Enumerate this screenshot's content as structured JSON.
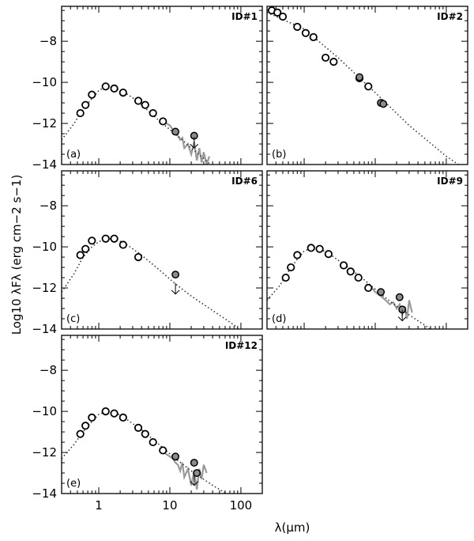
{
  "figure": {
    "ylabel": "Log10 λFλ (erg cm−2 s−1)",
    "xlabel": "λ(μm)"
  },
  "chart_data": [
    {
      "type": "scatter",
      "id_label": "ID#1",
      "panel_label": "(a)",
      "xscale": "log",
      "xlim": [
        0.3,
        200
      ],
      "ylim": [
        -14,
        -6.3
      ],
      "yticks": [
        -8,
        -10,
        -12,
        -14
      ],
      "xticks": [],
      "xtick_labels": [],
      "legend": "none",
      "series": [
        {
          "kind": "open_circles",
          "x": [
            0.55,
            0.65,
            0.8,
            1.25,
            1.65,
            2.2,
            3.6,
            4.5,
            5.8,
            8.0
          ],
          "y": [
            -11.5,
            -11.1,
            -10.6,
            -10.2,
            -10.3,
            -10.5,
            -10.9,
            -11.1,
            -11.5,
            -11.9
          ]
        },
        {
          "kind": "filled_circles",
          "x": [
            12,
            22
          ],
          "y": [
            -12.4,
            -12.6
          ]
        },
        {
          "kind": "upper_limits",
          "x": [
            22
          ],
          "y": [
            -13.2
          ]
        },
        {
          "kind": "model_dotted",
          "x": [
            0.3,
            0.45,
            0.6,
            0.8,
            1.0,
            1.25,
            1.6,
            2.2,
            3.0,
            4.5,
            7.0,
            10,
            15,
            20,
            30,
            40
          ],
          "y": [
            -12.8,
            -12.0,
            -11.3,
            -10.8,
            -10.4,
            -10.2,
            -10.25,
            -10.45,
            -10.75,
            -11.25,
            -11.85,
            -12.3,
            -12.8,
            -13.2,
            -13.7,
            -14.1
          ]
        },
        {
          "kind": "spectrum_gray",
          "x": [
            7.5,
            9,
            10,
            11,
            12,
            13,
            14,
            15,
            16,
            18,
            20,
            22,
            24,
            26,
            28,
            30,
            33,
            36
          ],
          "y": [
            -11.8,
            -12.0,
            -12.1,
            -12.3,
            -12.5,
            -12.6,
            -12.8,
            -12.7,
            -13.2,
            -13.0,
            -13.5,
            -12.9,
            -13.8,
            -13.2,
            -13.9,
            -13.4,
            -14.0,
            -13.6
          ]
        }
      ]
    },
    {
      "type": "scatter",
      "id_label": "ID#2",
      "panel_label": "(b)",
      "xscale": "log",
      "xlim": [
        0.3,
        200
      ],
      "ylim": [
        -14,
        -6.3
      ],
      "yticks": [],
      "xticks": [],
      "xtick_labels": [],
      "legend": "none",
      "series": [
        {
          "kind": "open_circles",
          "x": [
            0.35,
            0.42,
            0.5,
            0.8,
            1.05,
            1.35,
            2.0,
            2.6,
            6.0,
            8.0
          ],
          "y": [
            -6.5,
            -6.6,
            -6.8,
            -7.3,
            -7.6,
            -7.8,
            -8.8,
            -9.0,
            -9.8,
            -10.2
          ]
        },
        {
          "kind": "filled_circles",
          "x": [
            6.0,
            12,
            13
          ],
          "y": [
            -9.75,
            -11.0,
            -11.05
          ]
        },
        {
          "kind": "model_dotted",
          "x": [
            0.3,
            1.0,
            3.0,
            10,
            30,
            100,
            200
          ],
          "y": [
            -6.6,
            -7.4,
            -8.8,
            -10.5,
            -12.1,
            -13.6,
            -14.3
          ]
        }
      ]
    },
    {
      "type": "scatter",
      "id_label": "ID#6",
      "panel_label": "(c)",
      "xscale": "log",
      "xlim": [
        0.3,
        200
      ],
      "ylim": [
        -14,
        -6.3
      ],
      "yticks": [
        -8,
        -10,
        -12,
        -14
      ],
      "xticks": [],
      "xtick_labels": [],
      "legend": "none",
      "series": [
        {
          "kind": "open_circles",
          "x": [
            0.55,
            0.65,
            0.8,
            1.25,
            1.65,
            2.2,
            3.6
          ],
          "y": [
            -10.4,
            -10.1,
            -9.7,
            -9.6,
            -9.6,
            -9.9,
            -10.5
          ]
        },
        {
          "kind": "filled_circles",
          "x": [
            12
          ],
          "y": [
            -11.35
          ]
        },
        {
          "kind": "upper_limits",
          "x": [
            12
          ],
          "y": [
            -12.3
          ]
        },
        {
          "kind": "model_dotted",
          "x": [
            0.3,
            0.45,
            0.6,
            0.8,
            1.0,
            1.3,
            1.8,
            2.5,
            4,
            7,
            12,
            20,
            40,
            80,
            100
          ],
          "y": [
            -12.2,
            -11.3,
            -10.5,
            -10.0,
            -9.75,
            -9.6,
            -9.65,
            -9.9,
            -10.4,
            -11.1,
            -11.8,
            -12.4,
            -13.1,
            -13.8,
            -14.1
          ]
        }
      ]
    },
    {
      "type": "scatter",
      "id_label": "ID#9",
      "panel_label": "(d)",
      "xscale": "log",
      "xlim": [
        0.3,
        200
      ],
      "ylim": [
        -14,
        -6.3
      ],
      "yticks": [],
      "xticks": [],
      "xtick_labels": [],
      "legend": "none",
      "series": [
        {
          "kind": "open_circles",
          "x": [
            0.55,
            0.65,
            0.8,
            1.25,
            1.65,
            2.2,
            3.6,
            4.5,
            5.8,
            8.0
          ],
          "y": [
            -11.5,
            -11.0,
            -10.4,
            -10.05,
            -10.1,
            -10.35,
            -10.9,
            -11.2,
            -11.5,
            -12.0
          ]
        },
        {
          "kind": "filled_circles",
          "x": [
            12,
            22,
            24
          ],
          "y": [
            -12.2,
            -12.45,
            -13.05
          ]
        },
        {
          "kind": "upper_limits",
          "x": [
            24
          ],
          "y": [
            -13.6
          ]
        },
        {
          "kind": "model_dotted",
          "x": [
            0.3,
            0.45,
            0.6,
            0.8,
            1.0,
            1.3,
            1.8,
            2.5,
            4,
            7,
            12,
            20,
            40,
            60
          ],
          "y": [
            -12.6,
            -11.9,
            -11.2,
            -10.6,
            -10.2,
            -10.05,
            -10.15,
            -10.45,
            -10.95,
            -11.6,
            -12.3,
            -12.9,
            -13.6,
            -14.0
          ]
        },
        {
          "kind": "spectrum_gray",
          "x": [
            7.5,
            9,
            10,
            11,
            12,
            13,
            14,
            15,
            16,
            18,
            20,
            22,
            24,
            26,
            28,
            30,
            33
          ],
          "y": [
            -11.8,
            -12.0,
            -12.2,
            -12.3,
            -12.4,
            -12.5,
            -12.6,
            -12.7,
            -12.8,
            -12.7,
            -13.0,
            -12.8,
            -13.3,
            -12.9,
            -13.5,
            -12.6,
            -13.2
          ]
        }
      ]
    },
    {
      "type": "scatter",
      "id_label": "ID#12",
      "panel_label": "(e)",
      "xscale": "log",
      "xlim": [
        0.3,
        200
      ],
      "ylim": [
        -14,
        -6.3
      ],
      "yticks": [
        -8,
        -10,
        -12,
        -14
      ],
      "xticks": [
        1,
        10,
        100
      ],
      "xtick_labels": [
        "1",
        "10",
        "100"
      ],
      "legend": "none",
      "series": [
        {
          "kind": "open_circles",
          "x": [
            0.55,
            0.65,
            0.8,
            1.25,
            1.65,
            2.2,
            3.6,
            4.5,
            5.8,
            8.0
          ],
          "y": [
            -11.1,
            -10.7,
            -10.3,
            -10.0,
            -10.1,
            -10.3,
            -10.8,
            -11.1,
            -11.5,
            -11.9
          ]
        },
        {
          "kind": "filled_circles",
          "x": [
            12,
            22,
            24
          ],
          "y": [
            -12.2,
            -12.5,
            -13.0
          ]
        },
        {
          "kind": "upper_limits",
          "x": [
            22
          ],
          "y": [
            -13.6
          ]
        },
        {
          "kind": "model_dotted",
          "x": [
            0.3,
            0.45,
            0.6,
            0.8,
            1.0,
            1.3,
            1.8,
            2.5,
            4,
            7,
            12,
            20,
            40,
            70
          ],
          "y": [
            -12.3,
            -11.6,
            -11.0,
            -10.5,
            -10.15,
            -10.0,
            -10.1,
            -10.4,
            -10.9,
            -11.6,
            -12.3,
            -12.9,
            -13.6,
            -14.1
          ]
        },
        {
          "kind": "spectrum_gray",
          "x": [
            7.5,
            9,
            10,
            11,
            12,
            13,
            14,
            15,
            16,
            18,
            20,
            22,
            24,
            26,
            28,
            30,
            33
          ],
          "y": [
            -11.9,
            -12.1,
            -12.2,
            -12.3,
            -12.5,
            -12.6,
            -12.9,
            -12.5,
            -13.2,
            -12.8,
            -13.6,
            -12.9,
            -13.8,
            -12.8,
            -13.3,
            -12.6,
            -13.0
          ]
        }
      ]
    }
  ]
}
